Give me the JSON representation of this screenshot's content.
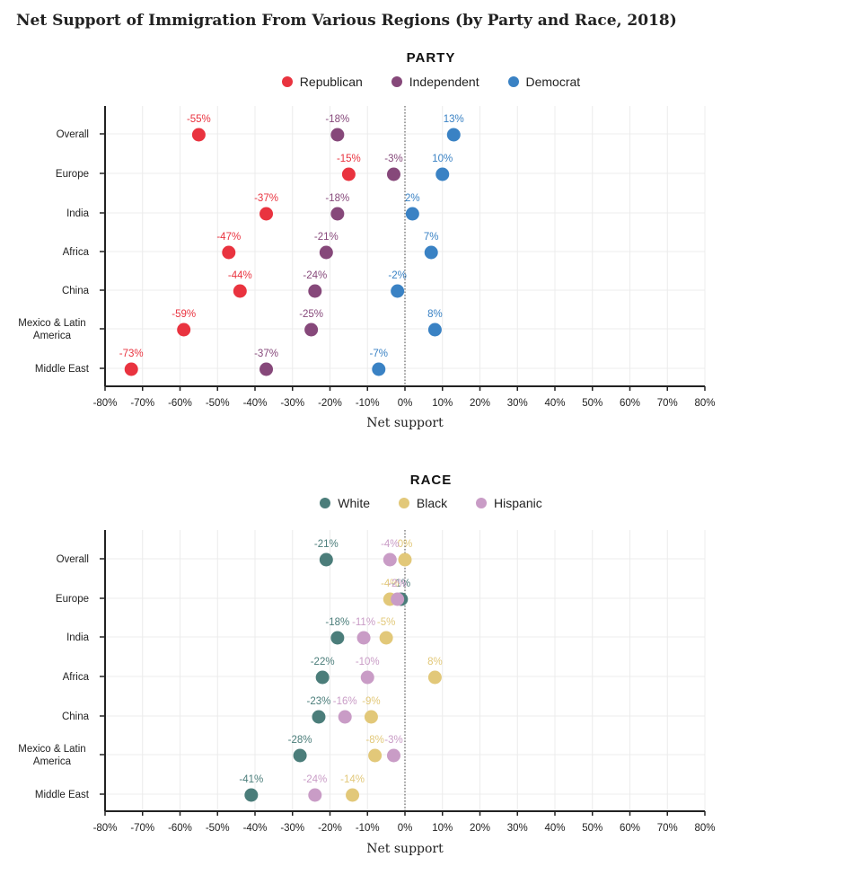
{
  "title": "Net Support of Immigration From Various Regions (by Party and Race, 2018)",
  "colors": {
    "Republican": "#e9333f",
    "Independent": "#86487a",
    "Democrat": "#3a82c4",
    "White": "#4b7d7a",
    "Black": "#e2c879",
    "Hispanic": "#c99cc6"
  },
  "chart_data": [
    {
      "type": "scatter",
      "panel_title": "PARTY",
      "xlabel": "Net support",
      "ylabel": "",
      "xlim": [
        -80,
        80
      ],
      "xticks": [
        -80,
        -70,
        -60,
        -50,
        -40,
        -30,
        -20,
        -10,
        0,
        10,
        20,
        30,
        40,
        50,
        60,
        70,
        80
      ],
      "grid": true,
      "legend": "top-center",
      "categories": [
        "Overall",
        "Europe",
        "India",
        "Africa",
        "China",
        "Mexico & Latin America",
        "Middle East"
      ],
      "series": [
        {
          "name": "Republican",
          "values": [
            -55,
            -15,
            -37,
            -47,
            -44,
            -59,
            -73
          ]
        },
        {
          "name": "Independent",
          "values": [
            -18,
            -3,
            -18,
            -21,
            -24,
            -25,
            -37
          ]
        },
        {
          "name": "Democrat",
          "values": [
            13,
            10,
            2,
            7,
            -2,
            8,
            -7
          ]
        }
      ]
    },
    {
      "type": "scatter",
      "panel_title": "RACE",
      "xlabel": "Net support",
      "ylabel": "",
      "xlim": [
        -80,
        80
      ],
      "xticks": [
        -80,
        -70,
        -60,
        -50,
        -40,
        -30,
        -20,
        -10,
        0,
        10,
        20,
        30,
        40,
        50,
        60,
        70,
        80
      ],
      "grid": true,
      "legend": "top-center",
      "categories": [
        "Overall",
        "Europe",
        "India",
        "Africa",
        "China",
        "Mexico & Latin America",
        "Middle East"
      ],
      "series": [
        {
          "name": "White",
          "values": [
            -21,
            -1,
            -18,
            -22,
            -23,
            -28,
            -41
          ]
        },
        {
          "name": "Black",
          "values": [
            0,
            -4,
            -5,
            8,
            -9,
            -8,
            -14
          ]
        },
        {
          "name": "Hispanic",
          "values": [
            -4,
            -2,
            -11,
            -10,
            -16,
            -3,
            -24
          ]
        }
      ]
    }
  ]
}
